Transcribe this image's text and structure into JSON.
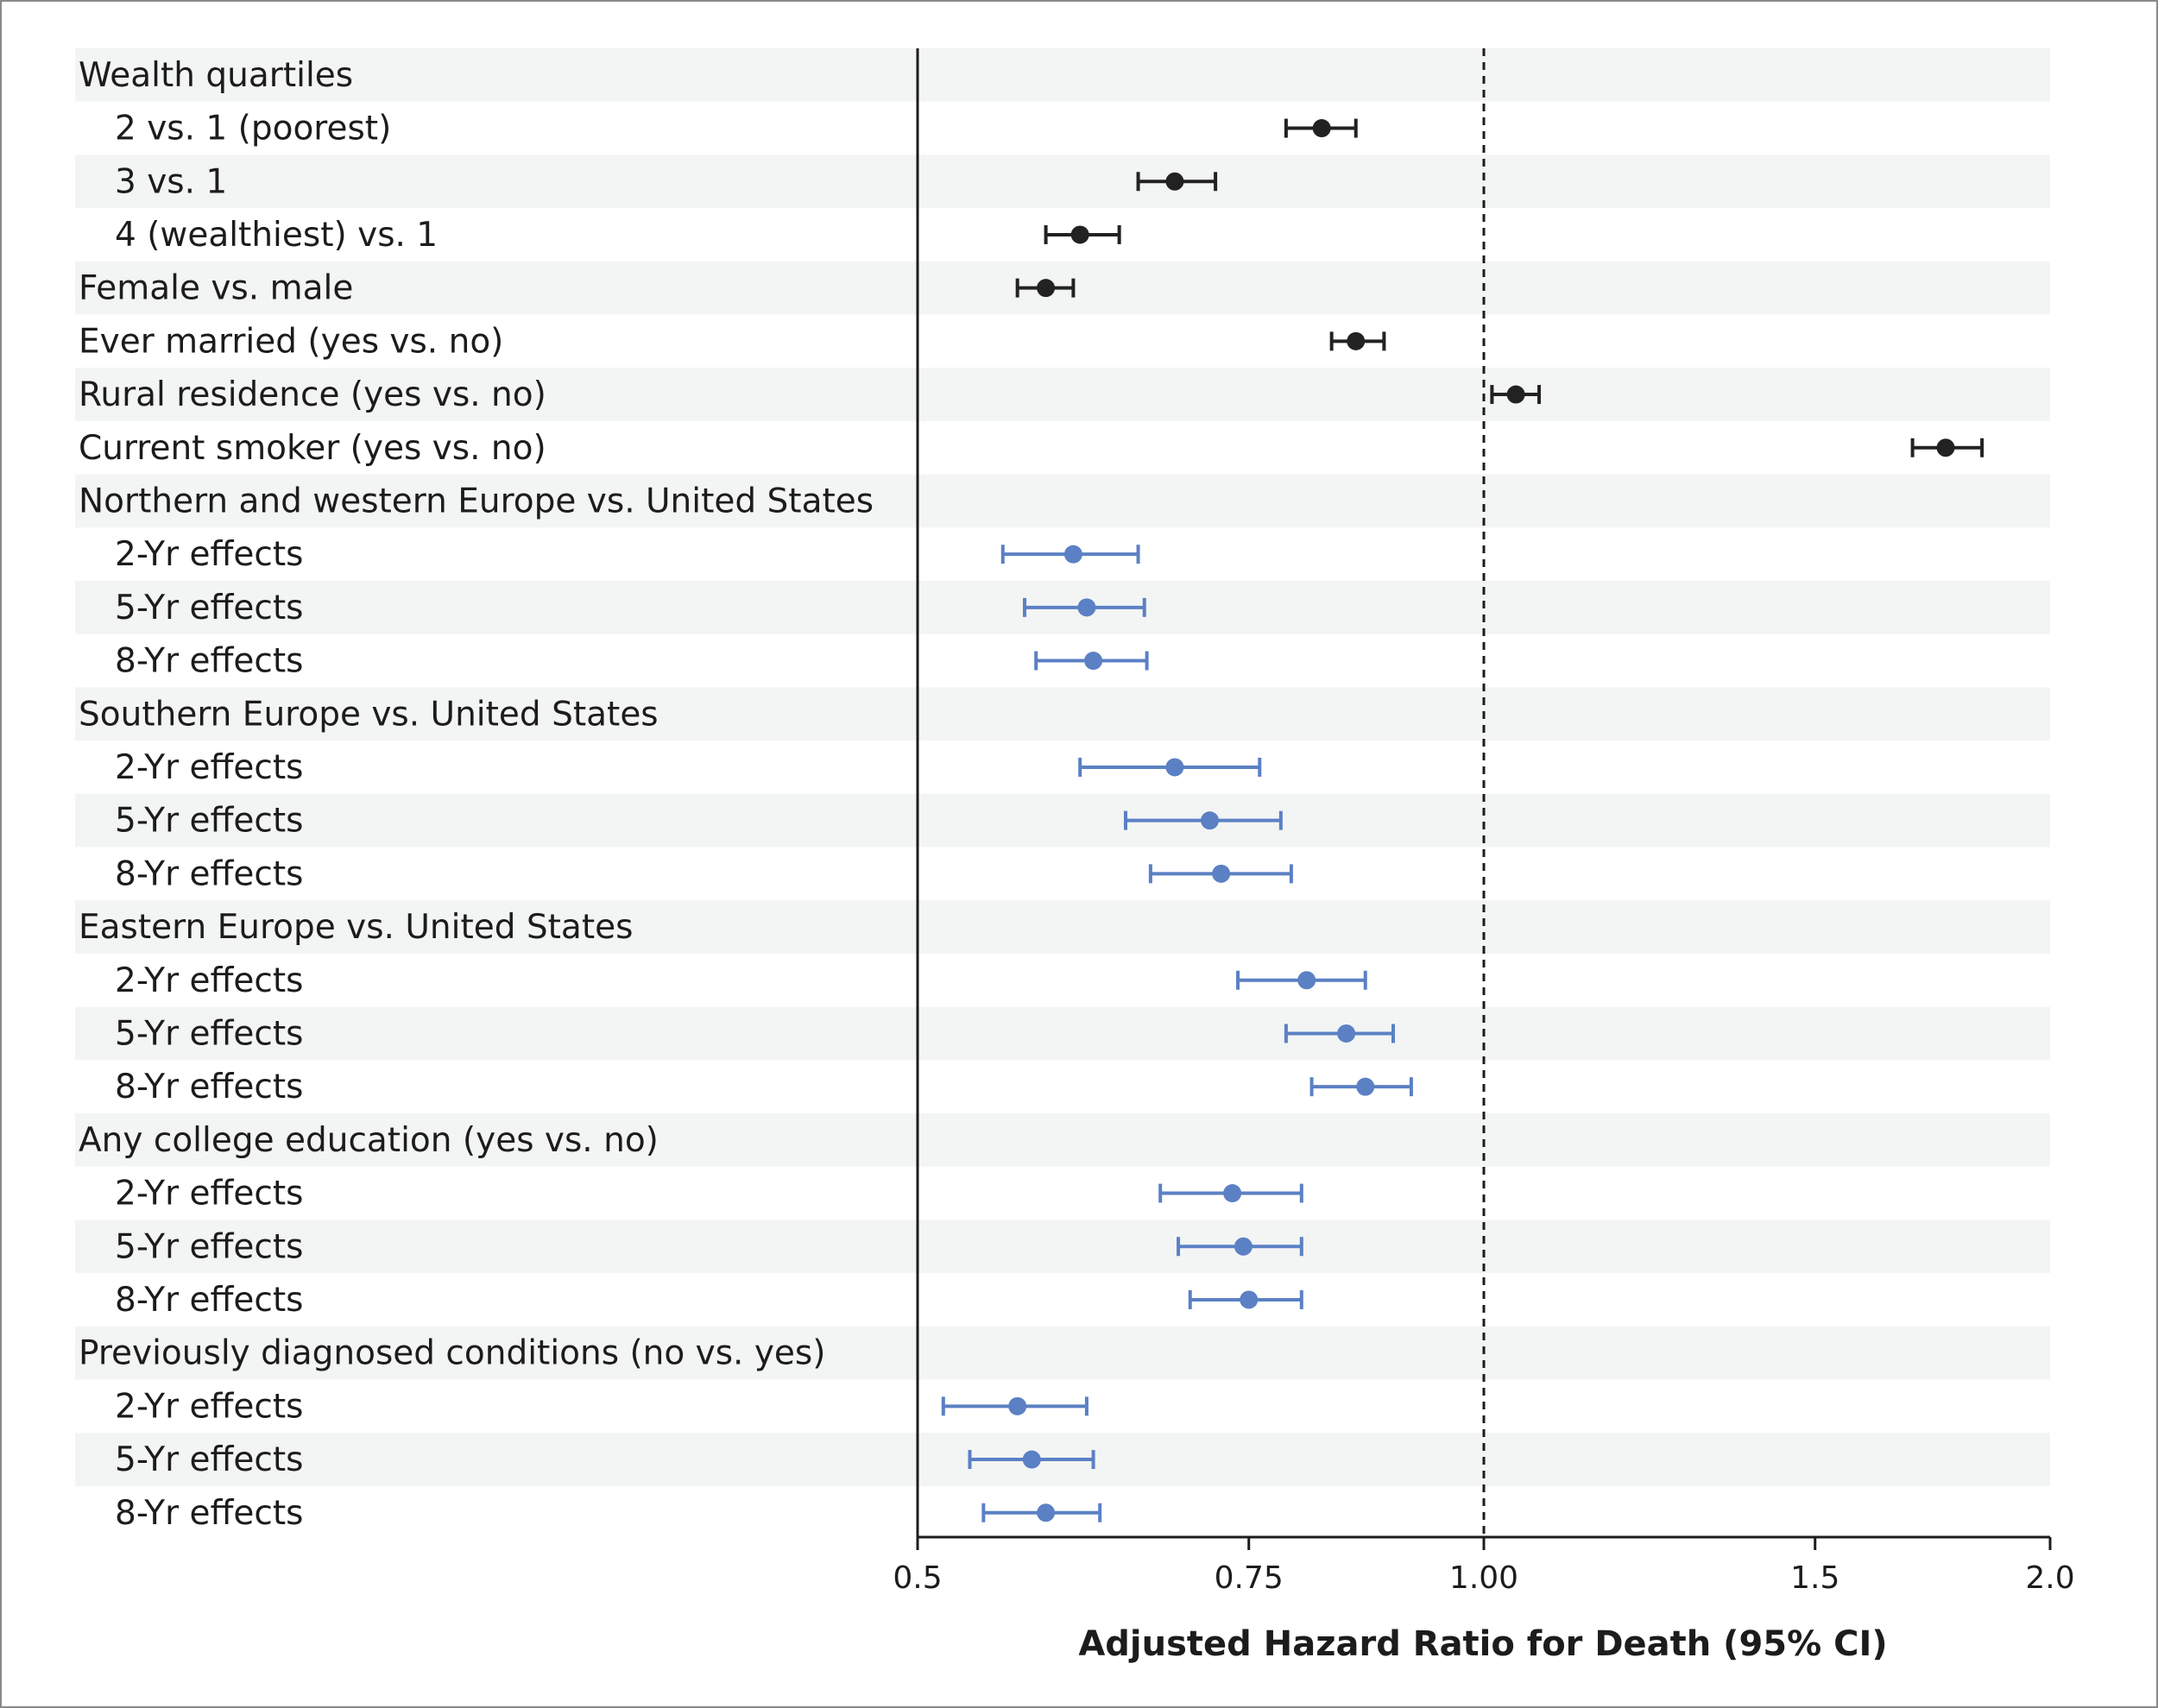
{
  "chart_data": {
    "type": "forest",
    "xlabel": "Adjusted Hazard Ratio for Death (95% CI)",
    "xscale": "log",
    "xlim": [
      0.5,
      2.0
    ],
    "reference_line": 1.0,
    "ticks": [
      {
        "value": 0.5,
        "label": "0.5"
      },
      {
        "value": 0.75,
        "label": "0.75"
      },
      {
        "value": 1.0,
        "label": "1.00"
      },
      {
        "value": 1.5,
        "label": "1.5"
      },
      {
        "value": 2.0,
        "label": "2.0"
      }
    ],
    "colors": {
      "black": "#222222",
      "blue": "#5b80c4",
      "band": "#f3f4f4",
      "axis": "#1c1c1c"
    },
    "rows": [
      {
        "label": "Wealth quartiles",
        "indent": 0,
        "header": true
      },
      {
        "label": "2 vs. 1 (poorest)",
        "indent": 1,
        "hr": 0.82,
        "lo": 0.785,
        "hi": 0.855,
        "color": "black"
      },
      {
        "label": "3 vs. 1",
        "indent": 1,
        "hr": 0.685,
        "lo": 0.655,
        "hi": 0.72,
        "color": "black"
      },
      {
        "label": "4 (wealthiest) vs. 1",
        "indent": 1,
        "hr": 0.61,
        "lo": 0.585,
        "hi": 0.64,
        "color": "black"
      },
      {
        "label": "Female vs. male",
        "indent": 0,
        "hr": 0.585,
        "lo": 0.565,
        "hi": 0.605,
        "color": "black"
      },
      {
        "label": "Ever married (yes vs. no)",
        "indent": 0,
        "hr": 0.855,
        "lo": 0.83,
        "hi": 0.885,
        "color": "black"
      },
      {
        "label": "Rural residence (yes vs. no)",
        "indent": 0,
        "hr": 1.04,
        "lo": 1.01,
        "hi": 1.07,
        "color": "black"
      },
      {
        "label": "Current smoker (yes vs. no)",
        "indent": 0,
        "hr": 1.76,
        "lo": 1.69,
        "hi": 1.84,
        "color": "black"
      },
      {
        "label": "Northern and western Europe vs. United States",
        "indent": 0,
        "header": true
      },
      {
        "label": "2-Yr effects",
        "indent": 1,
        "hr": 0.605,
        "lo": 0.555,
        "hi": 0.655,
        "color": "blue"
      },
      {
        "label": "5-Yr effects",
        "indent": 1,
        "hr": 0.615,
        "lo": 0.57,
        "hi": 0.66,
        "color": "blue"
      },
      {
        "label": "8-Yr effects",
        "indent": 1,
        "hr": 0.62,
        "lo": 0.578,
        "hi": 0.662,
        "color": "blue"
      },
      {
        "label": "Southern Europe vs. United States",
        "indent": 0,
        "header": true
      },
      {
        "label": "2-Yr effects",
        "indent": 1,
        "hr": 0.685,
        "lo": 0.61,
        "hi": 0.76,
        "color": "blue"
      },
      {
        "label": "5-Yr effects",
        "indent": 1,
        "hr": 0.715,
        "lo": 0.645,
        "hi": 0.78,
        "color": "blue"
      },
      {
        "label": "8-Yr effects",
        "indent": 1,
        "hr": 0.725,
        "lo": 0.665,
        "hi": 0.79,
        "color": "blue"
      },
      {
        "label": "Eastern Europe vs. United States",
        "indent": 0,
        "header": true
      },
      {
        "label": "2-Yr effects",
        "indent": 1,
        "hr": 0.805,
        "lo": 0.74,
        "hi": 0.865,
        "color": "blue"
      },
      {
        "label": "5-Yr effects",
        "indent": 1,
        "hr": 0.845,
        "lo": 0.785,
        "hi": 0.895,
        "color": "blue"
      },
      {
        "label": "8-Yr effects",
        "indent": 1,
        "hr": 0.865,
        "lo": 0.81,
        "hi": 0.915,
        "color": "blue"
      },
      {
        "label": "Any college education (yes vs. no)",
        "indent": 0,
        "header": true
      },
      {
        "label": "2-Yr effects",
        "indent": 1,
        "hr": 0.735,
        "lo": 0.673,
        "hi": 0.8,
        "color": "blue"
      },
      {
        "label": "5-Yr effects",
        "indent": 1,
        "hr": 0.745,
        "lo": 0.688,
        "hi": 0.8,
        "color": "blue"
      },
      {
        "label": "8-Yr effects",
        "indent": 1,
        "hr": 0.75,
        "lo": 0.698,
        "hi": 0.8,
        "color": "blue"
      },
      {
        "label": "Previously diagnosed conditions (no vs. yes)",
        "indent": 0,
        "header": true
      },
      {
        "label": "2-Yr effects",
        "indent": 1,
        "hr": 0.565,
        "lo": 0.516,
        "hi": 0.615,
        "color": "blue"
      },
      {
        "label": "5-Yr effects",
        "indent": 1,
        "hr": 0.575,
        "lo": 0.533,
        "hi": 0.62,
        "color": "blue"
      },
      {
        "label": "8-Yr effects",
        "indent": 1,
        "hr": 0.585,
        "lo": 0.542,
        "hi": 0.625,
        "color": "blue"
      }
    ]
  }
}
